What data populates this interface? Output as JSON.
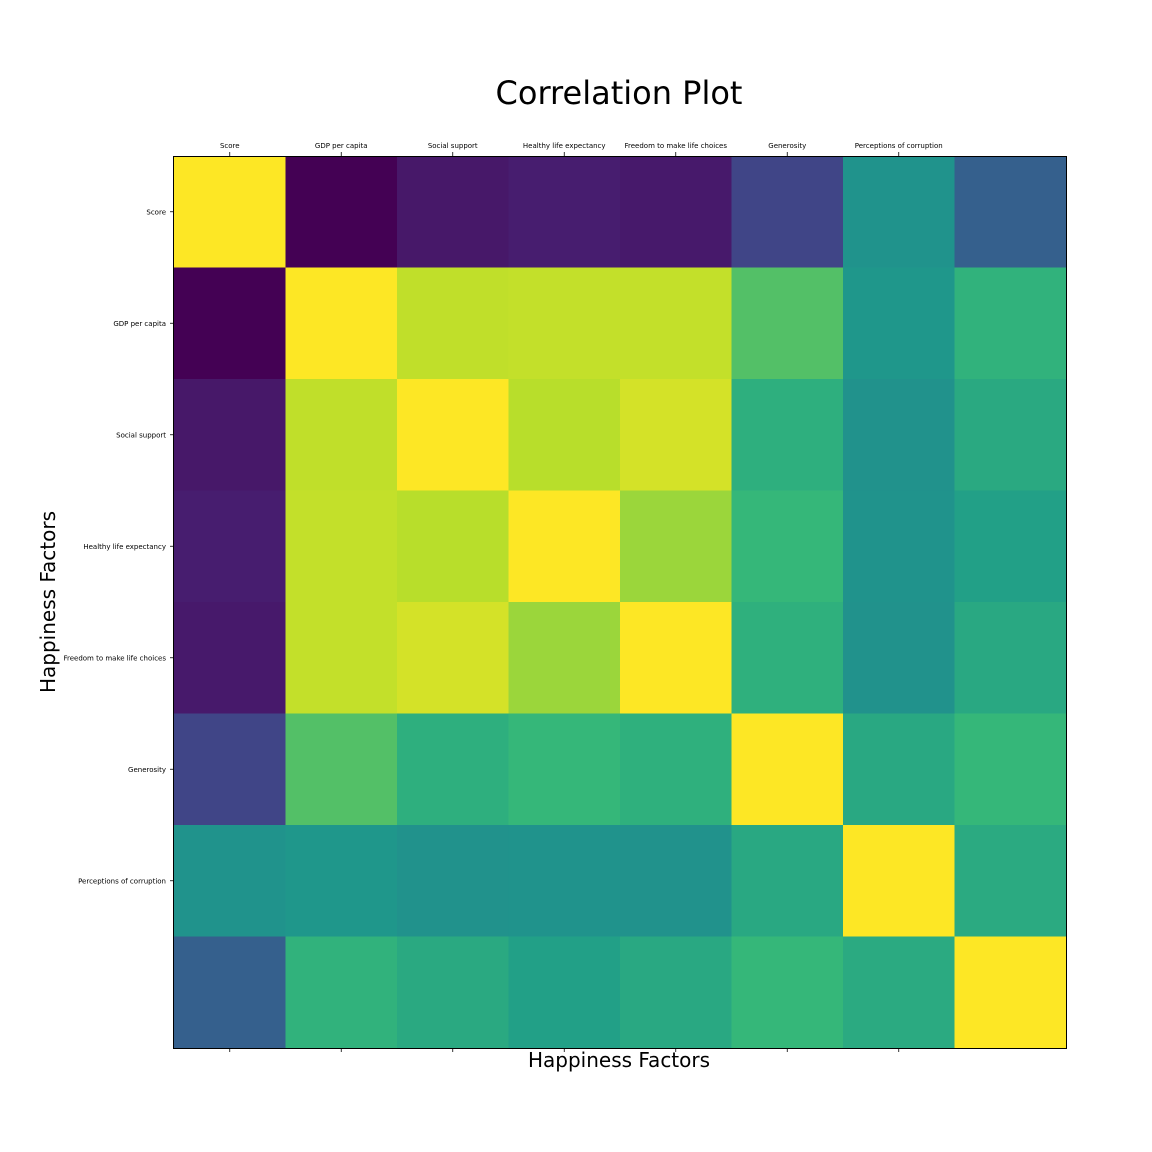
{
  "chart_data": {
    "type": "heatmap",
    "title": "Correlation Plot",
    "xlabel": "Happiness Factors",
    "ylabel": "Happiness Factors",
    "x_tick_labels": [
      "Score",
      "GDP per capita",
      "Social support",
      "Healthy life expectancy",
      "Freedom to make life choices",
      "Generosity",
      "Perceptions of corruption",
      ""
    ],
    "y_tick_labels": [
      "Score",
      "GDP per capita",
      "Social support",
      "Healthy life expectancy",
      "Freedom to make life choices",
      "Generosity",
      "Perceptions of corruption",
      ""
    ],
    "x_ticks_position": "top and bottom",
    "grid": false,
    "legend": false,
    "colormap": "viridis",
    "value_range": [
      -0.99,
      1.0
    ],
    "values": [
      [
        1.0,
        -0.99,
        -0.83,
        -0.79,
        -0.82,
        -0.48,
        0.05,
        -0.24
      ],
      [
        -0.99,
        1.0,
        0.79,
        0.8,
        0.8,
        0.56,
        0.15,
        0.46
      ],
      [
        -0.83,
        0.79,
        1.0,
        0.76,
        0.86,
        0.43,
        0.04,
        0.38
      ],
      [
        -0.79,
        0.8,
        0.76,
        1.0,
        0.7,
        0.5,
        0.05,
        0.3
      ],
      [
        -0.82,
        0.8,
        0.86,
        0.7,
        1.0,
        0.44,
        0.03,
        0.37
      ],
      [
        -0.48,
        0.56,
        0.43,
        0.5,
        0.44,
        1.0,
        0.37,
        0.5
      ],
      [
        0.05,
        0.15,
        0.04,
        0.05,
        0.03,
        0.37,
        1.0,
        0.39
      ],
      [
        -0.24,
        0.46,
        0.38,
        0.3,
        0.37,
        0.5,
        0.39,
        1.0
      ]
    ]
  }
}
